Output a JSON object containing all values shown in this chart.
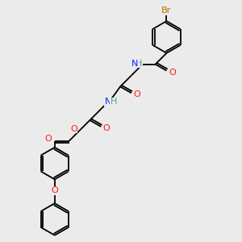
{
  "bg_color": "#ebebeb",
  "atom_colors": {
    "C": "#000000",
    "H": "#3fa3a3",
    "N": "#1a1aff",
    "O": "#ff1a1a",
    "Br": "#cc6600"
  },
  "bond_color": "#000000",
  "lw": 1.3,
  "ring_r": 20,
  "fs": 8.0
}
